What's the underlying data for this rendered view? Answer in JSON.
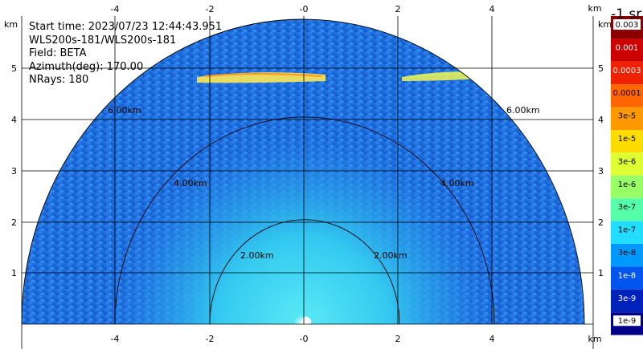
{
  "info": {
    "start_time": "Start time: 2023/07/23 12:44:43.951",
    "instrument": "WLS200s-181/WLS200s-181",
    "field": "Field: BETA",
    "azimuth": "Azimuth(deg): 170.00",
    "nrays": "NRays: 180"
  },
  "axes": {
    "x_unit": "km",
    "y_unit": "km",
    "x_ticks": [
      "-4",
      "-2",
      "-0",
      "2",
      "4"
    ],
    "x_tick_values": [
      -4,
      -2,
      0,
      2,
      4
    ],
    "y_ticks": [
      "1",
      "2",
      "3",
      "4",
      "5"
    ],
    "y_tick_values": [
      1,
      2,
      3,
      4,
      5
    ],
    "x_range": [
      -6,
      6
    ],
    "y_range": [
      0,
      5.8
    ]
  },
  "rings": {
    "values_km": [
      2,
      4,
      6
    ],
    "labels": [
      "2.00km",
      "4.00km",
      "6.00km"
    ]
  },
  "colorbar": {
    "unit": "-1 sr",
    "labels": [
      "0.003",
      "0.001",
      "0.0003",
      "0.0001",
      "3e-5",
      "1e-5",
      "3e-6",
      "1e-6",
      "3e-7",
      "1e-7",
      "3e-8",
      "1e-8",
      "3e-9",
      "1e-9"
    ],
    "colors": [
      "#8b0000",
      "#cc0000",
      "#ee2200",
      "#ff6600",
      "#ff9900",
      "#ffdd00",
      "#ddff33",
      "#99ff66",
      "#55ffaa",
      "#22ddff",
      "#0099ff",
      "#0055ee",
      "#0022bb",
      "#000088"
    ]
  },
  "colors": {
    "background_field": "#1f6fe0",
    "near_field": "#33c8f0",
    "aerosol_layer": "#f2e25a"
  }
}
